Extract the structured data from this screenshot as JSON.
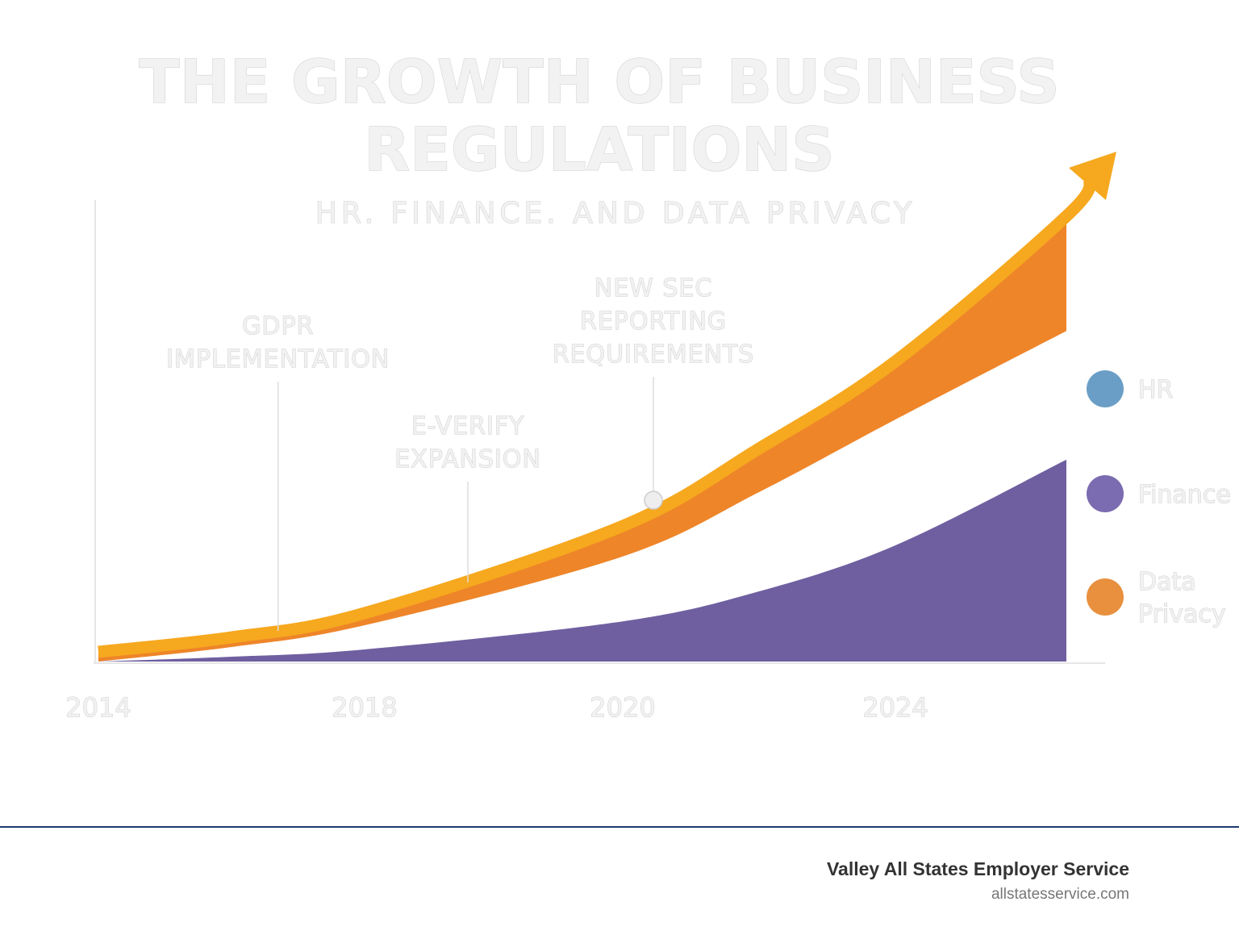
{
  "chart_data": {
    "type": "area",
    "title": [
      "THE GROWTH OF BUSINESS",
      "REGULATIONS"
    ],
    "subtitle": "HR. FINANCE. AND DATA PRIVACY",
    "x_ticks": [
      "2014",
      "2018",
      "2020",
      "2024"
    ],
    "x": [
      2014,
      2016,
      2018,
      2020,
      2022,
      2024,
      2026.5
    ],
    "y_scale": "relative, unlabeled",
    "grid": false,
    "legend_placement": "right",
    "series": [
      {
        "name": "HR",
        "color": "#6a9ec6",
        "legend_color": "#6a9ec6",
        "line_color": "#f6a81e",
        "values": [
          2,
          5,
          10,
          28,
          44,
          62,
          92
        ],
        "style": "arrow"
      },
      {
        "name": "Data Privacy",
        "color": "#ee8529",
        "legend_color": "#e8903e",
        "values": [
          0,
          3,
          7.5,
          21.7,
          35,
          50,
          68.3
        ],
        "style": "band"
      },
      {
        "name": "Finance",
        "color": "#6f5fa0",
        "legend_color": "#7b6bb0",
        "values": [
          0,
          1,
          2.5,
          8.3,
          14.5,
          24,
          41.7
        ],
        "style": "area"
      }
    ],
    "annotations": [
      {
        "lines": [
          "GDPR",
          "IMPLEMENTATION"
        ],
        "x": 2016.7
      },
      {
        "lines": [
          "E-VERIFY",
          "EXPANSION"
        ],
        "x": 2018.8
      },
      {
        "lines": [
          "NEW SEC",
          "REPORTING",
          "REQUIREMENTS"
        ],
        "x": 2020.45,
        "marker": true
      }
    ]
  },
  "footer": {
    "company": "Valley All States Employer Service",
    "website": "allstatesservice.com",
    "rule_color": "#1d3a6e"
  }
}
